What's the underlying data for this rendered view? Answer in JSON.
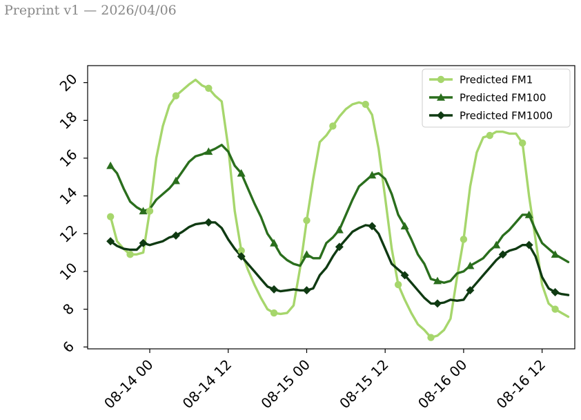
{
  "header": {
    "text": "Preprint v1 — 2026/04/06"
  },
  "chart_data": {
    "type": "line",
    "title": "",
    "xlabel": "",
    "ylabel": "",
    "x_unit": "hours",
    "x_ticks": [
      {
        "x": 0,
        "label": "08-14 00"
      },
      {
        "x": 12,
        "label": "08-14 12"
      },
      {
        "x": 24,
        "label": "08-15 00"
      },
      {
        "x": 36,
        "label": "08-15 12"
      },
      {
        "x": 48,
        "label": "08-16 00"
      },
      {
        "x": 60,
        "label": "08-16 12"
      }
    ],
    "y_ticks": [
      6,
      8,
      10,
      12,
      14,
      16,
      18,
      20
    ],
    "xlim": [
      -9.5,
      65
    ],
    "ylim": [
      5.9,
      20.9
    ],
    "grid": false,
    "legend": "top-right",
    "series": [
      {
        "name": "Predicted FM1",
        "color": "#a6d66c",
        "marker": "circle",
        "x": [
          -6,
          -5,
          -4,
          -3,
          -2,
          -1,
          0,
          1,
          2,
          3,
          4,
          5,
          6,
          7,
          8,
          9,
          10,
          11,
          12,
          13,
          14,
          15,
          16,
          17,
          18,
          19,
          20,
          21,
          22,
          23,
          24,
          25,
          26,
          27,
          28,
          29,
          30,
          31,
          32,
          33,
          34,
          35,
          36,
          37,
          38,
          39,
          40,
          41,
          42,
          43,
          44,
          45,
          46,
          47,
          48,
          49,
          50,
          51,
          52,
          53,
          54,
          55,
          56,
          57,
          58,
          59,
          60,
          61,
          62,
          63,
          64
        ],
        "y": [
          12.9,
          11.6,
          11.2,
          10.9,
          10.9,
          11.0,
          13.2,
          16.0,
          17.7,
          18.8,
          19.3,
          19.6,
          19.9,
          20.15,
          19.85,
          19.7,
          19.3,
          19.0,
          16.6,
          13.2,
          11.1,
          10.1,
          9.3,
          8.6,
          8.0,
          7.8,
          7.75,
          7.8,
          8.2,
          10.2,
          12.7,
          14.9,
          16.85,
          17.2,
          17.7,
          18.2,
          18.6,
          18.85,
          18.95,
          18.85,
          18.3,
          16.5,
          13.9,
          11.2,
          9.3,
          8.5,
          7.8,
          7.2,
          6.9,
          6.5,
          6.6,
          6.9,
          7.5,
          9.7,
          11.7,
          14.5,
          16.3,
          17.1,
          17.2,
          17.4,
          17.4,
          17.3,
          17.3,
          16.8,
          14.0,
          11.7,
          9.3,
          8.3,
          8.0,
          7.8,
          7.6
        ],
        "marker_x": [
          -6,
          -3,
          0,
          4,
          9,
          14,
          19,
          24,
          28,
          33,
          38,
          43,
          48,
          52,
          57,
          62
        ]
      },
      {
        "name": "Predicted FM100",
        "color": "#2a6e1d",
        "marker": "triangle",
        "x": [
          -6,
          -5,
          -4,
          -3,
          -2,
          -1,
          0,
          1,
          2,
          3,
          4,
          5,
          6,
          7,
          8,
          9,
          10,
          11,
          12,
          13,
          14,
          15,
          16,
          17,
          18,
          19,
          20,
          21,
          22,
          23,
          24,
          25,
          26,
          27,
          28,
          29,
          30,
          31,
          32,
          33,
          34,
          35,
          36,
          37,
          38,
          39,
          40,
          41,
          42,
          43,
          44,
          45,
          46,
          47,
          48,
          49,
          50,
          51,
          52,
          53,
          54,
          55,
          56,
          57,
          58,
          59,
          60,
          61,
          62,
          63,
          64
        ],
        "y": [
          15.6,
          15.2,
          14.4,
          13.7,
          13.4,
          13.2,
          13.3,
          13.8,
          14.1,
          14.4,
          14.8,
          15.3,
          15.8,
          16.1,
          16.2,
          16.35,
          16.5,
          16.7,
          16.35,
          15.6,
          15.2,
          14.4,
          13.6,
          12.9,
          12.0,
          11.5,
          10.9,
          10.6,
          10.4,
          10.3,
          10.9,
          10.7,
          10.7,
          11.5,
          11.8,
          12.2,
          13.0,
          13.8,
          14.5,
          14.8,
          15.1,
          15.2,
          14.9,
          14.1,
          13.0,
          12.4,
          11.7,
          10.9,
          10.4,
          9.6,
          9.5,
          9.4,
          9.5,
          9.9,
          10.0,
          10.3,
          10.5,
          10.7,
          11.1,
          11.4,
          11.9,
          12.2,
          12.6,
          13.0,
          13.0,
          12.2,
          11.5,
          11.2,
          10.9,
          10.7,
          10.5
        ],
        "marker_x": [
          -6,
          -1,
          4,
          9,
          14,
          19,
          24,
          29,
          34,
          39,
          44,
          49,
          53,
          58,
          62
        ]
      },
      {
        "name": "Predicted FM1000",
        "color": "#0f3a12",
        "marker": "diamond",
        "x": [
          -6,
          -5,
          -4,
          -3,
          -2,
          -1,
          0,
          1,
          2,
          3,
          4,
          5,
          6,
          7,
          8,
          9,
          10,
          11,
          12,
          13,
          14,
          15,
          16,
          17,
          18,
          19,
          20,
          21,
          22,
          23,
          24,
          25,
          26,
          27,
          28,
          29,
          30,
          31,
          32,
          33,
          34,
          35,
          36,
          37,
          38,
          39,
          40,
          41,
          42,
          43,
          44,
          45,
          46,
          47,
          48,
          49,
          50,
          51,
          52,
          53,
          54,
          55,
          56,
          57,
          58,
          59,
          60,
          61,
          62,
          63,
          64
        ],
        "y": [
          11.6,
          11.35,
          11.2,
          11.15,
          11.15,
          11.5,
          11.4,
          11.5,
          11.6,
          11.8,
          11.9,
          12.1,
          12.35,
          12.5,
          12.55,
          12.6,
          12.6,
          12.3,
          11.7,
          11.2,
          10.8,
          10.4,
          10.0,
          9.6,
          9.2,
          9.05,
          8.95,
          9.0,
          9.05,
          9.0,
          9.0,
          9.1,
          9.8,
          10.2,
          10.8,
          11.3,
          11.7,
          12.1,
          12.3,
          12.45,
          12.4,
          12.0,
          11.2,
          10.4,
          10.1,
          9.8,
          9.4,
          9.0,
          8.6,
          8.3,
          8.3,
          8.35,
          8.5,
          8.45,
          8.5,
          9.0,
          9.4,
          9.8,
          10.2,
          10.6,
          10.9,
          11.1,
          11.2,
          11.4,
          11.4,
          10.8,
          9.7,
          9.1,
          8.9,
          8.8,
          8.75
        ],
        "marker_x": [
          -6,
          -1,
          4,
          9,
          14,
          19,
          24,
          29,
          34,
          39,
          44,
          49,
          54,
          58,
          62
        ]
      }
    ]
  }
}
